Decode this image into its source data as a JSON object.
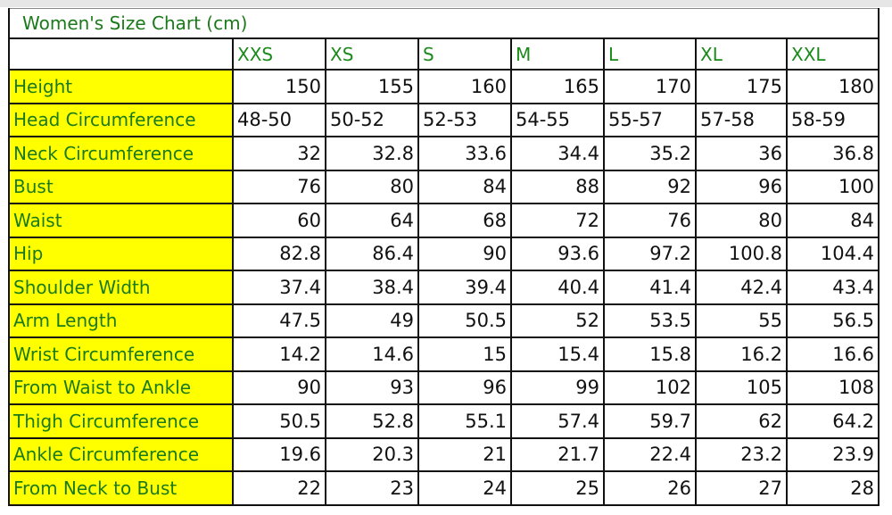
{
  "title": "Women's Size Chart (cm)",
  "sizes": [
    "XXS",
    "XS",
    "S",
    "M",
    "L",
    "XL",
    "XXL"
  ],
  "rows": [
    {
      "label": "Height",
      "values": [
        "150",
        "155",
        "160",
        "165",
        "170",
        "175",
        "180"
      ],
      "align": "num"
    },
    {
      "label": "Head Circumference",
      "values": [
        "48-50",
        "50-52",
        "52-53",
        "54-55",
        "55-57",
        "57-58",
        "58-59"
      ],
      "align": "rng"
    },
    {
      "label": "Neck Circumference",
      "values": [
        "32",
        "32.8",
        "33.6",
        "34.4",
        "35.2",
        "36",
        "36.8"
      ],
      "align": "num"
    },
    {
      "label": "Bust",
      "values": [
        "76",
        "80",
        "84",
        "88",
        "92",
        "96",
        "100"
      ],
      "align": "num"
    },
    {
      "label": "Waist",
      "values": [
        "60",
        "64",
        "68",
        "72",
        "76",
        "80",
        "84"
      ],
      "align": "num"
    },
    {
      "label": "Hip",
      "values": [
        "82.8",
        "86.4",
        "90",
        "93.6",
        "97.2",
        "100.8",
        "104.4"
      ],
      "align": "num"
    },
    {
      "label": "Shoulder Width",
      "values": [
        "37.4",
        "38.4",
        "39.4",
        "40.4",
        "41.4",
        "42.4",
        "43.4"
      ],
      "align": "num"
    },
    {
      "label": "Arm Length",
      "values": [
        "47.5",
        "49",
        "50.5",
        "52",
        "53.5",
        "55",
        "56.5"
      ],
      "align": "num"
    },
    {
      "label": "Wrist Circumference",
      "values": [
        "14.2",
        "14.6",
        "15",
        "15.4",
        "15.8",
        "16.2",
        "16.6"
      ],
      "align": "num"
    },
    {
      "label": "From Waist to Ankle",
      "values": [
        "90",
        "93",
        "96",
        "99",
        "102",
        "105",
        "108"
      ],
      "align": "num"
    },
    {
      "label": "Thigh Circumference",
      "values": [
        "50.5",
        "52.8",
        "55.1",
        "57.4",
        "59.7",
        "62",
        "64.2"
      ],
      "align": "num"
    },
    {
      "label": "Ankle Circumference",
      "values": [
        "19.6",
        "20.3",
        "21",
        "21.7",
        "22.4",
        "23.2",
        "23.9"
      ],
      "align": "num"
    },
    {
      "label": "From Neck to Bust",
      "values": [
        "22",
        "23",
        "24",
        "25",
        "26",
        "27",
        "28"
      ],
      "align": "num"
    }
  ],
  "colors": {
    "label_bg": "#ffff00",
    "label_text": "#1a7a1a",
    "border": "#111111"
  }
}
